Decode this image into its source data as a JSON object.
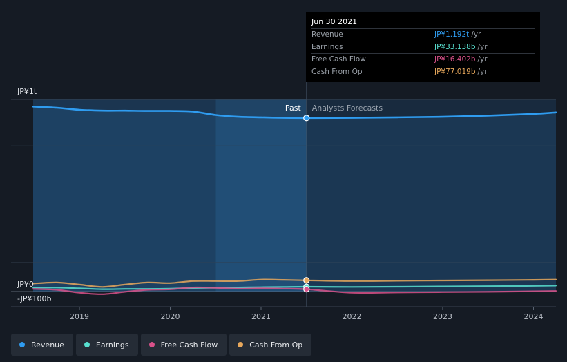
{
  "tooltip": {
    "date": "Jun 30 2021",
    "rows": [
      {
        "label": "Revenue",
        "value": "JP¥1.192t",
        "unit": "/yr",
        "color": "#2f9cf0"
      },
      {
        "label": "Earnings",
        "value": "JP¥33.138b",
        "unit": "/yr",
        "color": "#58e0d0"
      },
      {
        "label": "Free Cash Flow",
        "value": "JP¥16.402b",
        "unit": "/yr",
        "color": "#d9518a"
      },
      {
        "label": "Cash From Op",
        "value": "JP¥77.019b",
        "unit": "/yr",
        "color": "#e8a85c"
      }
    ]
  },
  "legend": [
    {
      "label": "Revenue",
      "color": "#2f9cf0"
    },
    {
      "label": "Earnings",
      "color": "#58e0d0"
    },
    {
      "label": "Free Cash Flow",
      "color": "#d9518a"
    },
    {
      "label": "Cash From Op",
      "color": "#e8a85c"
    }
  ],
  "chart_data": {
    "type": "line",
    "y_tick_labels": [
      "JP¥1t",
      "JP¥0",
      "-JP¥100b"
    ],
    "ylim": [
      -100,
      1300
    ],
    "x_tick_labels": [
      "2019",
      "2020",
      "2021",
      "2022",
      "2023",
      "2024"
    ],
    "past_label": "Past",
    "forecast_label": "Analysts Forecasts",
    "divider_x": 2021.5,
    "highlight_start_x": 2020.5,
    "grid": true,
    "colors": {
      "past_fill": "#1b3550",
      "highlight_fill": "#1f4466",
      "forecast_fill": "#182a3e"
    },
    "series": [
      {
        "name": "Revenue",
        "color": "#2f9cf0",
        "area": true,
        "x": [
          2018.5,
          2018.75,
          2019.0,
          2019.25,
          2019.5,
          2019.75,
          2020.0,
          2020.25,
          2020.5,
          2020.75,
          2021.0,
          2021.25,
          2021.5,
          2022.0,
          2022.5,
          2023.0,
          2023.5,
          2024.0,
          2024.25
        ],
        "y": [
          1270,
          1262,
          1248,
          1242,
          1242,
          1240,
          1240,
          1236,
          1212,
          1200,
          1196,
          1193,
          1192,
          1193,
          1196,
          1200,
          1208,
          1220,
          1230
        ]
      },
      {
        "name": "Earnings",
        "color": "#58e0d0",
        "area": false,
        "x": [
          2018.5,
          2018.75,
          2019.0,
          2019.25,
          2019.5,
          2019.75,
          2020.0,
          2020.25,
          2020.5,
          2020.75,
          2021.0,
          2021.25,
          2021.5,
          2022.0,
          2022.5,
          2023.0,
          2023.5,
          2024.0,
          2024.25
        ],
        "y": [
          28,
          27,
          22,
          16,
          18,
          18,
          20,
          24,
          26,
          28,
          30,
          32,
          33,
          32,
          33,
          35,
          37,
          39,
          41
        ]
      },
      {
        "name": "Free Cash Flow",
        "color": "#d9518a",
        "area": false,
        "x": [
          2018.5,
          2018.75,
          2019.0,
          2019.25,
          2019.5,
          2019.75,
          2020.0,
          2020.25,
          2020.5,
          2020.75,
          2021.0,
          2021.25,
          2021.5,
          2022.0,
          2022.5,
          2023.0,
          2023.5,
          2024.0,
          2024.25
        ],
        "y": [
          18,
          12,
          -8,
          -18,
          -2,
          12,
          15,
          28,
          25,
          20,
          22,
          20,
          16,
          -8,
          -6,
          -4,
          -2,
          2,
          4
        ]
      },
      {
        "name": "Cash From Op",
        "color": "#e8a85c",
        "area": false,
        "x": [
          2018.5,
          2018.75,
          2019.0,
          2019.25,
          2019.5,
          2019.75,
          2020.0,
          2020.25,
          2020.5,
          2020.75,
          2021.0,
          2021.25,
          2021.5,
          2022.0,
          2022.5,
          2023.0,
          2023.5,
          2024.0,
          2024.25
        ],
        "y": [
          55,
          62,
          48,
          32,
          48,
          62,
          58,
          72,
          72,
          72,
          82,
          80,
          77,
          72,
          74,
          76,
          78,
          80,
          82
        ]
      }
    ]
  }
}
